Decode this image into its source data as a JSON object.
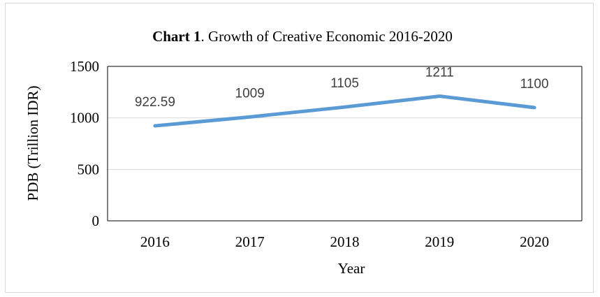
{
  "chart_data": {
    "type": "line",
    "title_bold": "Chart 1",
    "title_rest": ". Growth of Creative Economic 2016-2020",
    "xlabel": "Year",
    "ylabel": "PDB (Trillion IDR)",
    "categories": [
      "2016",
      "2017",
      "2018",
      "2019",
      "2020"
    ],
    "series": [
      {
        "values": [
          922.59,
          1009,
          1105,
          1211,
          1100
        ],
        "labels": [
          "922.59",
          "1009",
          "1105",
          "1211",
          "1100"
        ]
      }
    ],
    "ylim": [
      0,
      1500
    ],
    "yticks": [
      "0",
      "500",
      "1000",
      "1500"
    ],
    "grid": true,
    "legend": "none",
    "colors": {
      "line": "#5b9bd5",
      "grid": "#d9d9d9",
      "axis": "#000000",
      "label": "#404040"
    }
  }
}
